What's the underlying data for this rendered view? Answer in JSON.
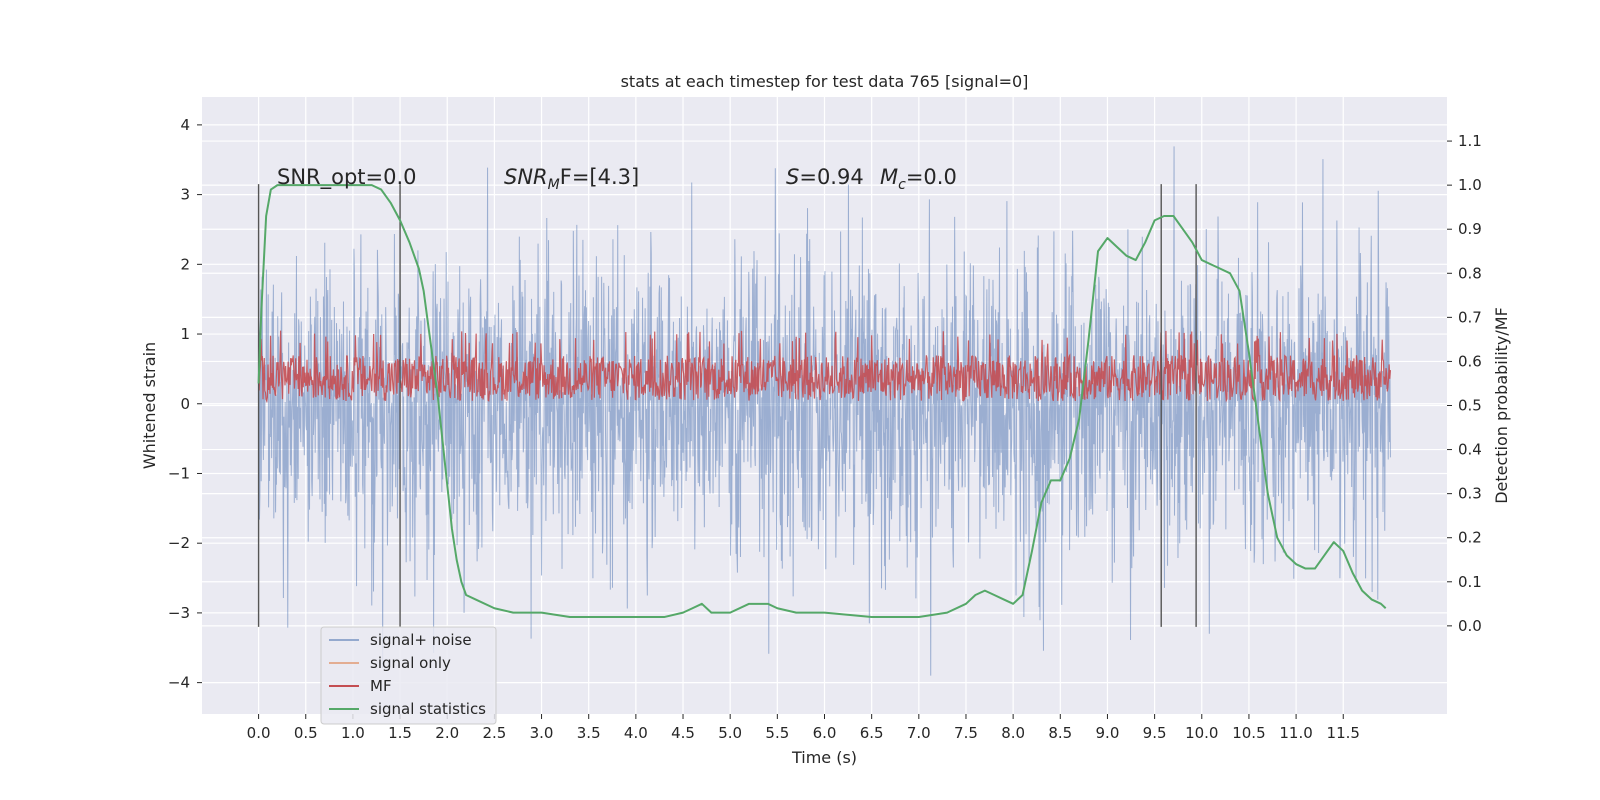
{
  "chart_data": {
    "type": "line",
    "title": "stats at each timestep for test data 765 [signal=0]",
    "xlabel": "Time (s)",
    "ylabel": "Whitened strain",
    "ylabel_right": "Detection probability/MF",
    "xlim": [
      -0.6,
      12.6
    ],
    "ylim": [
      -4.45,
      4.4
    ],
    "ylim_right": [
      -0.2,
      1.2
    ],
    "x_ticks": [
      "0.0",
      "0.5",
      "1.0",
      "1.5",
      "2.0",
      "2.5",
      "3.0",
      "3.5",
      "4.0",
      "4.5",
      "5.0",
      "5.5",
      "6.0",
      "6.5",
      "7.0",
      "7.5",
      "8.0",
      "8.5",
      "9.0",
      "9.5",
      "10.0",
      "10.5",
      "11.0",
      "11.5"
    ],
    "y_ticks": [
      "4",
      "3",
      "2",
      "1",
      "0",
      "−1",
      "−2",
      "−3",
      "−4"
    ],
    "y_ticks_right": [
      "1.1",
      "1.0",
      "0.9",
      "0.8",
      "0.7",
      "0.6",
      "0.5",
      "0.4",
      "0.3",
      "0.2",
      "0.1",
      "0.0"
    ],
    "grid": true,
    "legend_placement": "lower-left",
    "annotations": {
      "snr_opt": "SNR_opt=0.0",
      "snr_mf_base": "SNR",
      "snr_mf_sub": "M",
      "snr_mf_rest": "F=[4.3]",
      "s_label": "S",
      "s_value": "=0.94",
      "mc_label": "M",
      "mc_sub": "c",
      "mc_value": "=0.0"
    },
    "vertical_markers": [
      0.0,
      1.5,
      9.57,
      9.94
    ],
    "series": [
      {
        "name": "signal+ noise",
        "color": "#4c72b0",
        "x_range": [
          0.0,
          12.0
        ],
        "y_envelope_upper": [
          2.2,
          3.9
        ],
        "y_envelope_lower": [
          -2.2,
          -3.9
        ]
      },
      {
        "name": "signal only",
        "color": "#dd8452",
        "x_range": [
          0.0,
          12.0
        ],
        "values": []
      },
      {
        "name": "MF",
        "color": "#c44e52",
        "x_range": [
          0.0,
          12.0
        ],
        "y_axis": "right",
        "y_range": [
          0.51,
          0.67
        ]
      },
      {
        "name": "signal statistics",
        "color": "#55a868",
        "y_axis": "right",
        "x": [
          0.0,
          0.03,
          0.08,
          0.13,
          0.2,
          0.3,
          0.5,
          0.8,
          1.0,
          1.2,
          1.3,
          1.4,
          1.5,
          1.6,
          1.7,
          1.75,
          1.8,
          1.85,
          1.9,
          1.95,
          2.0,
          2.05,
          2.1,
          2.15,
          2.2,
          2.3,
          2.5,
          2.7,
          3.0,
          3.3,
          3.6,
          4.0,
          4.3,
          4.5,
          4.6,
          4.7,
          4.8,
          4.9,
          5.0,
          5.2,
          5.4,
          5.5,
          5.7,
          6.0,
          6.5,
          7.0,
          7.3,
          7.5,
          7.6,
          7.7,
          7.8,
          7.9,
          8.0,
          8.1,
          8.2,
          8.3,
          8.4,
          8.5,
          8.6,
          8.7,
          8.8,
          8.9,
          9.0,
          9.1,
          9.2,
          9.3,
          9.4,
          9.5,
          9.6,
          9.7,
          9.8,
          9.9,
          10.0,
          10.1,
          10.2,
          10.3,
          10.4,
          10.5,
          10.6,
          10.7,
          10.8,
          10.9,
          11.0,
          11.1,
          11.2,
          11.3,
          11.4,
          11.5,
          11.6,
          11.7,
          11.8,
          11.9,
          11.95
        ],
        "values": [
          0.55,
          0.72,
          0.93,
          0.99,
          1.0,
          1.0,
          1.0,
          1.0,
          1.0,
          1.0,
          0.99,
          0.96,
          0.92,
          0.87,
          0.81,
          0.76,
          0.68,
          0.6,
          0.52,
          0.42,
          0.32,
          0.22,
          0.15,
          0.1,
          0.07,
          0.06,
          0.04,
          0.03,
          0.03,
          0.02,
          0.02,
          0.02,
          0.02,
          0.03,
          0.04,
          0.05,
          0.03,
          0.03,
          0.03,
          0.05,
          0.05,
          0.04,
          0.03,
          0.03,
          0.02,
          0.02,
          0.03,
          0.05,
          0.07,
          0.08,
          0.07,
          0.06,
          0.05,
          0.07,
          0.17,
          0.28,
          0.33,
          0.33,
          0.38,
          0.47,
          0.65,
          0.85,
          0.88,
          0.86,
          0.84,
          0.83,
          0.87,
          0.92,
          0.93,
          0.93,
          0.9,
          0.87,
          0.83,
          0.82,
          0.81,
          0.8,
          0.76,
          0.62,
          0.46,
          0.3,
          0.2,
          0.16,
          0.14,
          0.13,
          0.13,
          0.16,
          0.19,
          0.17,
          0.12,
          0.08,
          0.06,
          0.05,
          0.04
        ]
      }
    ]
  }
}
